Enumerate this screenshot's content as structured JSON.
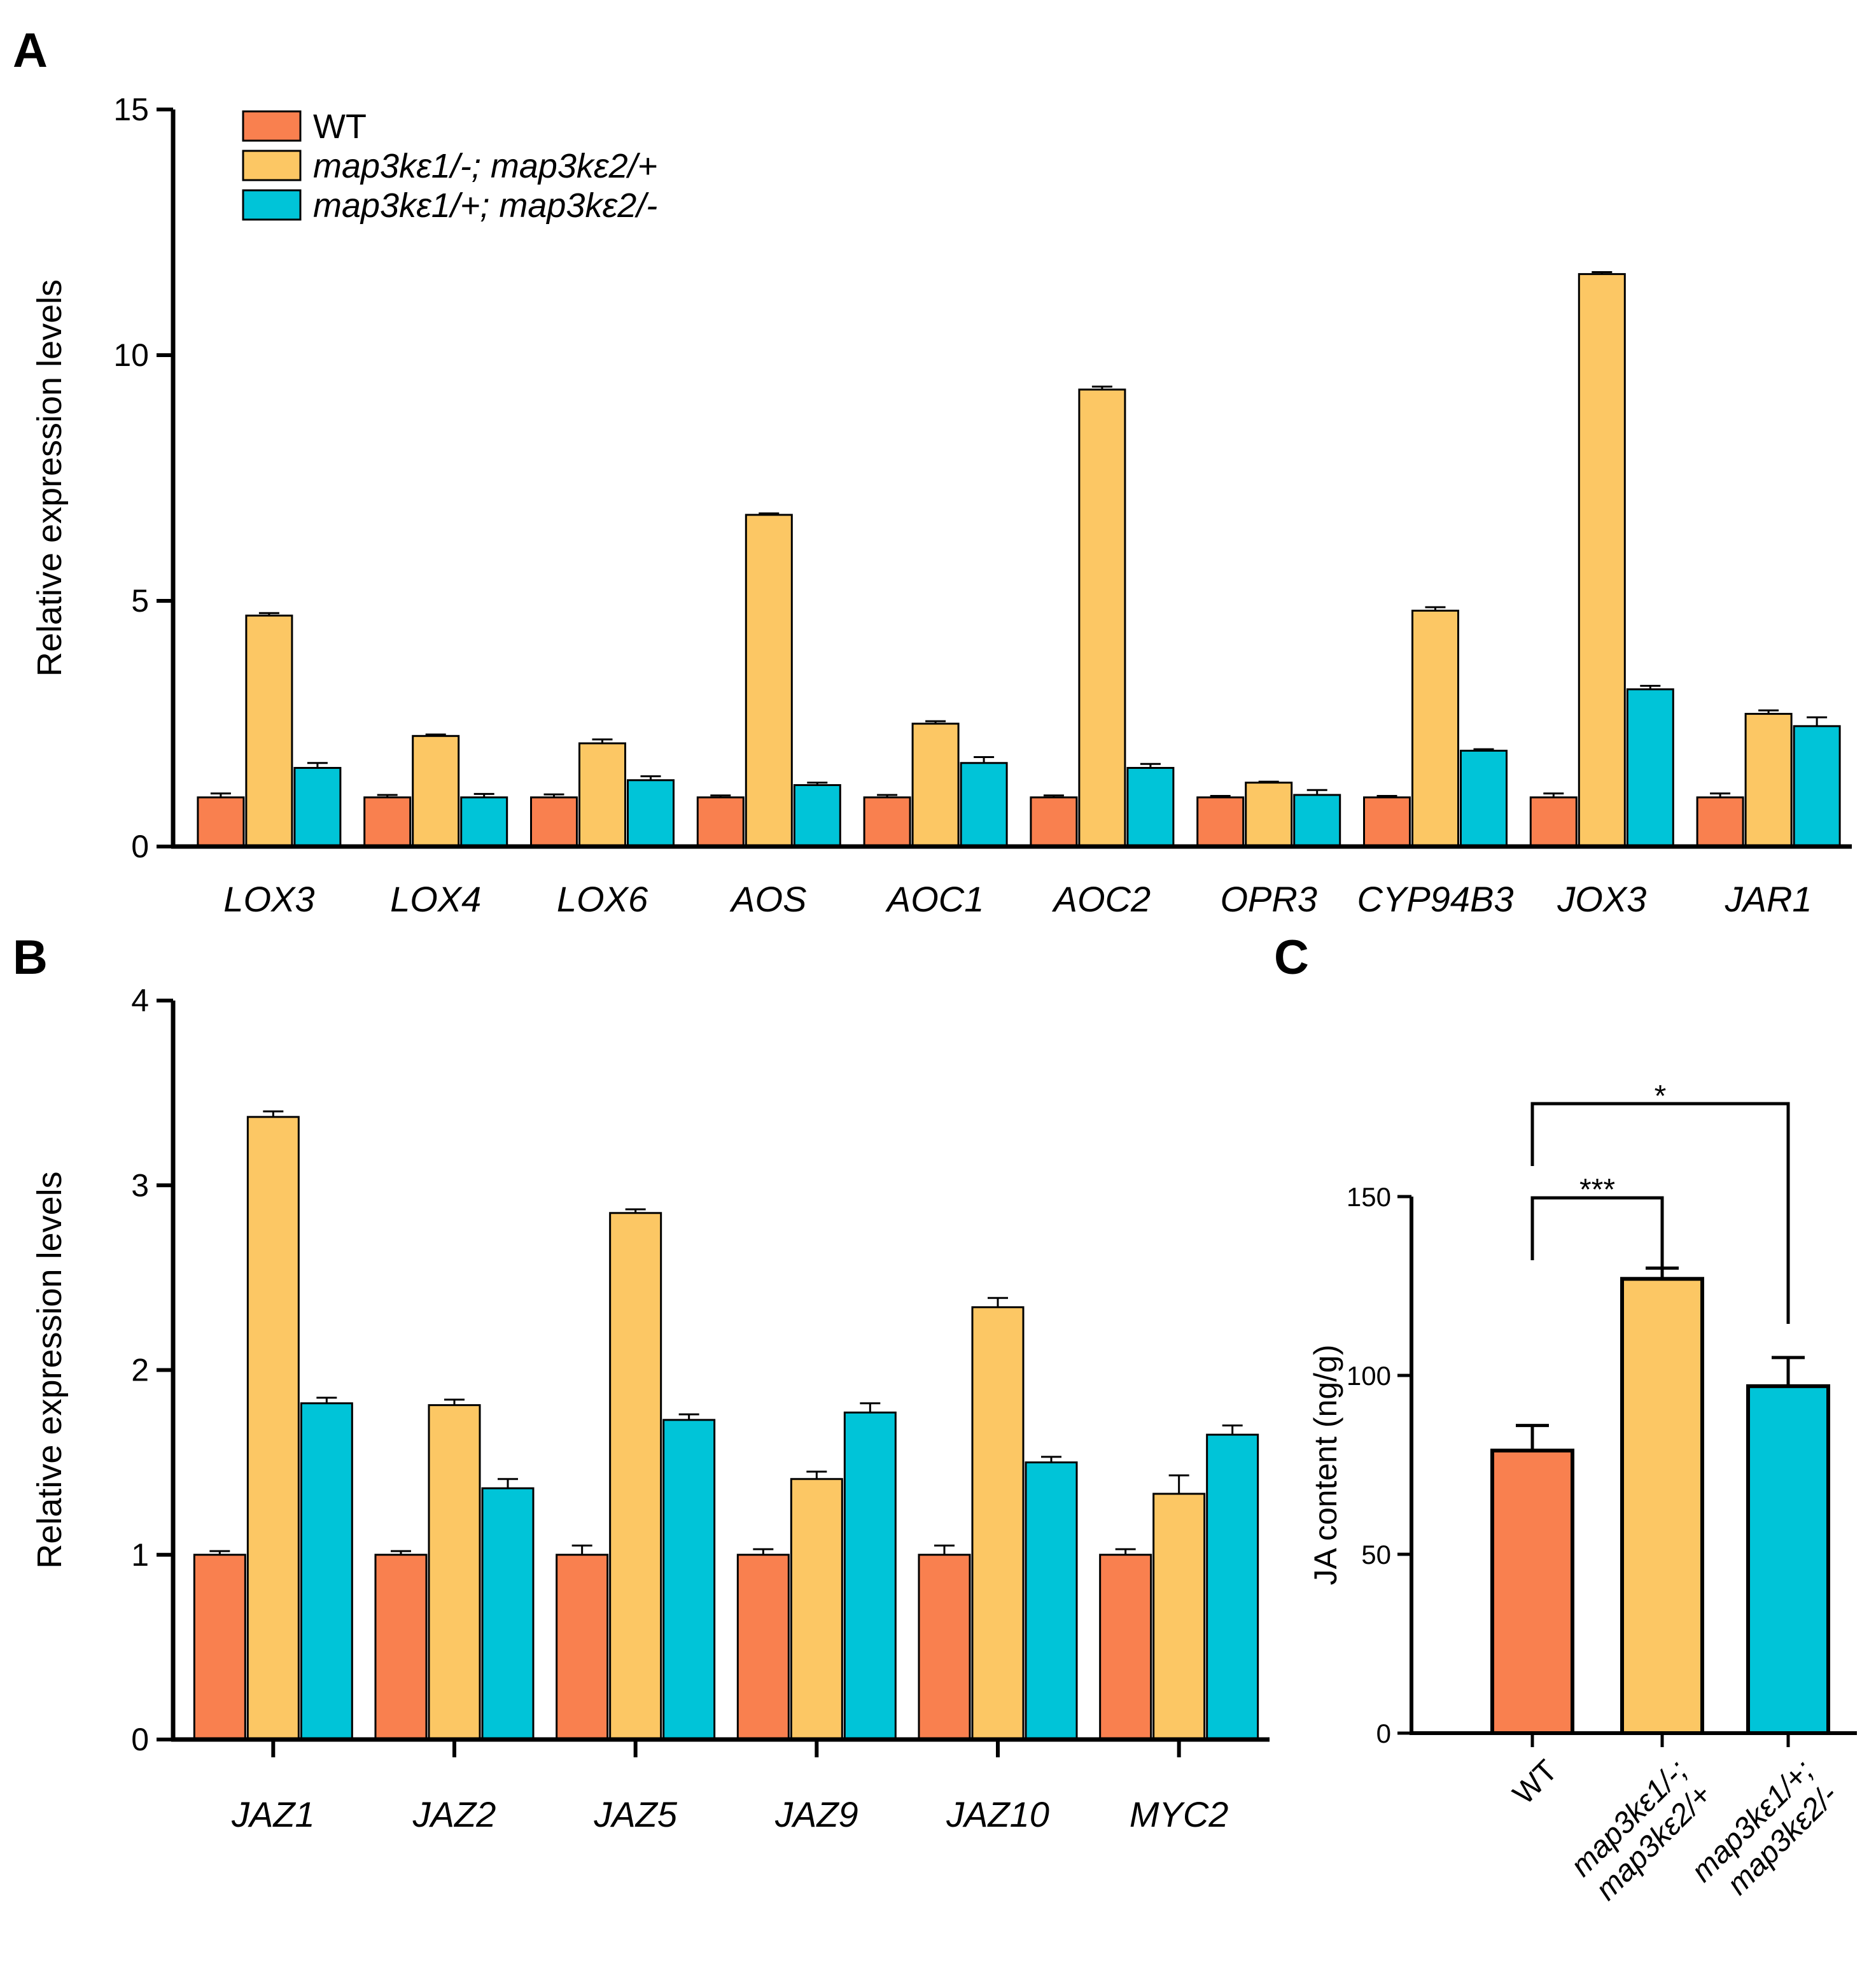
{
  "colors": {
    "wt": "#F9804F",
    "mut1": "#FCC764",
    "mut2": "#00C4D8",
    "axis": "#000000"
  },
  "legend": {
    "entries": [
      {
        "label": "WT",
        "italic": false,
        "color_key": "wt"
      },
      {
        "label": "map3kε1/-; map3kε2/+",
        "italic": true,
        "color_key": "mut1"
      },
      {
        "label": "map3kε1/+; map3kε2/-",
        "italic": true,
        "color_key": "mut2"
      }
    ]
  },
  "chart_data": [
    {
      "panel": "A",
      "type": "bar",
      "xlabel": "",
      "ylabel": "Relative  expression levels",
      "ylim": [
        0,
        15
      ],
      "yticks": [
        0,
        5,
        10,
        15
      ],
      "categories": [
        "LOX3",
        "LOX4",
        "LOX6",
        "AOS",
        "AOC1",
        "AOC2",
        "OPR3",
        "CYP94B3",
        "JOX3",
        "JAR1"
      ],
      "series": [
        {
          "name": "WT",
          "color_key": "wt",
          "values": [
            1.0,
            1.0,
            1.0,
            1.0,
            1.0,
            1.0,
            1.0,
            1.0,
            1.0,
            1.0
          ],
          "errors": [
            0.08,
            0.05,
            0.06,
            0.04,
            0.05,
            0.04,
            0.03,
            0.03,
            0.08,
            0.08
          ]
        },
        {
          "name": "map3kε1/-; map3kε2/+",
          "color_key": "mut1",
          "values": [
            4.7,
            2.25,
            2.1,
            6.75,
            2.5,
            9.3,
            1.3,
            4.8,
            11.65,
            2.7
          ],
          "errors": [
            0.05,
            0.03,
            0.08,
            0.03,
            0.05,
            0.06,
            0.02,
            0.07,
            0.04,
            0.07
          ]
        },
        {
          "name": "map3kε1/+; map3kε2/-",
          "color_key": "mut2",
          "values": [
            1.6,
            1.0,
            1.35,
            1.25,
            1.7,
            1.6,
            1.05,
            1.95,
            3.2,
            2.45
          ],
          "errors": [
            0.1,
            0.07,
            0.08,
            0.05,
            0.12,
            0.08,
            0.1,
            0.03,
            0.07,
            0.18
          ]
        }
      ]
    },
    {
      "panel": "B",
      "type": "bar",
      "xlabel": "",
      "ylabel": "Relative  expression levels",
      "ylim": [
        0,
        4
      ],
      "yticks": [
        0,
        1,
        2,
        3,
        4
      ],
      "categories": [
        "JAZ1",
        "JAZ2",
        "JAZ5",
        "JAZ9",
        "JAZ10",
        "MYC2"
      ],
      "series": [
        {
          "name": "WT",
          "color_key": "wt",
          "values": [
            1.0,
            1.0,
            1.0,
            1.0,
            1.0,
            1.0
          ],
          "errors": [
            0.02,
            0.02,
            0.05,
            0.03,
            0.05,
            0.03
          ]
        },
        {
          "name": "map3kε1/-; map3kε2/+",
          "color_key": "mut1",
          "values": [
            3.37,
            1.81,
            2.85,
            1.41,
            2.34,
            1.33
          ],
          "errors": [
            0.03,
            0.03,
            0.02,
            0.04,
            0.05,
            0.1
          ]
        },
        {
          "name": "map3kε1/+; map3kε2/-",
          "color_key": "mut2",
          "values": [
            1.82,
            1.36,
            1.73,
            1.77,
            1.5,
            1.65
          ],
          "errors": [
            0.03,
            0.05,
            0.03,
            0.05,
            0.03,
            0.05
          ]
        }
      ]
    },
    {
      "panel": "C",
      "type": "bar",
      "xlabel": "",
      "ylabel": "JA content (ng/g)",
      "ylim": [
        0,
        150
      ],
      "yticks": [
        0,
        50,
        100,
        150
      ],
      "categories": [
        "WT",
        "map3kε1/-; map3kε2/+",
        "map3kε1/+; map3kε2/-"
      ],
      "category_lines": [
        [
          "WT"
        ],
        [
          "map3kε1/-;",
          "map3kε2/+"
        ],
        [
          "map3kε1/+;",
          "map3kε2/-"
        ]
      ],
      "values": [
        79,
        127,
        97
      ],
      "errors": [
        7,
        3,
        8
      ],
      "color_keys": [
        "wt",
        "mut1",
        "mut2"
      ],
      "significance": [
        {
          "from": "WT",
          "to": "map3kε1/-; map3kε2/+",
          "label": "***"
        },
        {
          "from": "WT",
          "to": "map3kε1/+; map3kε2/-",
          "label": "*"
        }
      ]
    }
  ]
}
